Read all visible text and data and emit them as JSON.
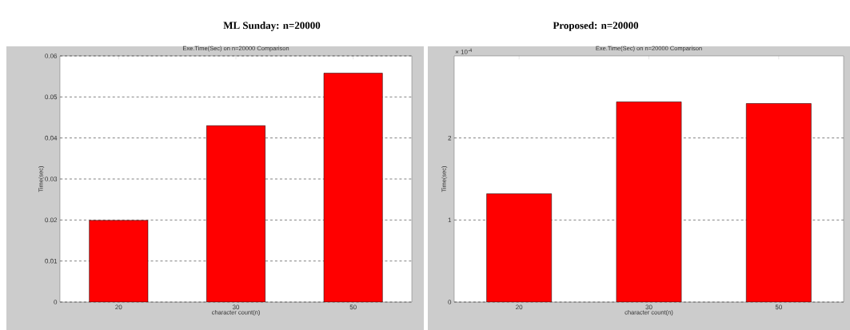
{
  "chart_data": [
    {
      "type": "bar",
      "title": "ML Sunday: n=20000",
      "subtitle": "Exe.Time(Sec) on n=20000 Comparison",
      "xlabel": "character count(n)",
      "ylabel": "Time(sec)",
      "categories": [
        "20",
        "30",
        "50"
      ],
      "values": [
        0.0199,
        0.043,
        0.0558
      ],
      "color": "#ff0000",
      "ylim": [
        0,
        0.06
      ],
      "yticks": [
        0,
        0.01,
        0.02,
        0.03,
        0.04,
        0.05,
        0.06
      ],
      "grid": "y"
    },
    {
      "type": "bar",
      "title": "Proposed: n=20000",
      "subtitle": "Exe.Time(Sec) on n=20000 Comparison",
      "xlabel": "character count(n)",
      "ylabel": "Time(sec)",
      "annotations": [
        "× 10$^{-4}$"
      ],
      "categories": [
        "20",
        "30",
        "50"
      ],
      "values": [
        1.32,
        2.44,
        2.42
      ],
      "color": "#ff0000",
      "ylim": [
        0,
        3
      ],
      "yticks": [
        0,
        1,
        2
      ],
      "grid": "y"
    }
  ]
}
